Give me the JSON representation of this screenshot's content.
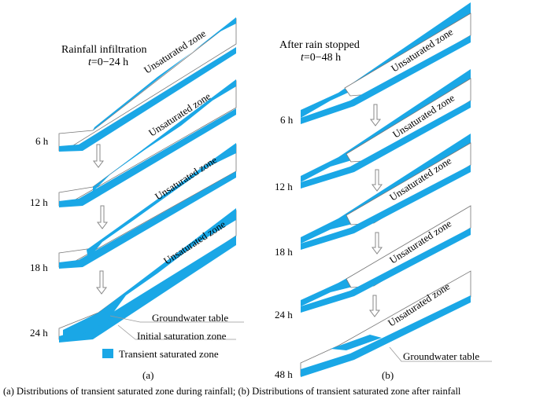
{
  "panel_a": {
    "title": "Rainfall infiltration",
    "time_var": "t",
    "time_range": "=0−24 h",
    "zone_label": "Unsaturated zone",
    "time_labels": [
      "6 h",
      "12 h",
      "18 h",
      "24 h"
    ],
    "callouts": {
      "groundwater": "Groundwater table",
      "initial": "Initial saturation zone"
    },
    "legend_label": "Transient saturated zone",
    "sub_label": "(a)"
  },
  "panel_b": {
    "title": "After rain stopped",
    "time_var": "t",
    "time_range": "=0−48 h",
    "zone_label": "Unsaturated zone",
    "time_labels": [
      "6 h",
      "12 h",
      "18 h",
      "24 h",
      "48 h"
    ],
    "callouts": {
      "groundwater": "Groundwater table"
    },
    "sub_label": "(b)"
  },
  "caption": "(a) Distributions of transient saturated zone during rainfall; (b) Distributions of transient saturated zone after rainfall",
  "colors": {
    "saturated": "#1aa7e6",
    "outline": "#777777",
    "arrow": "#888888"
  }
}
